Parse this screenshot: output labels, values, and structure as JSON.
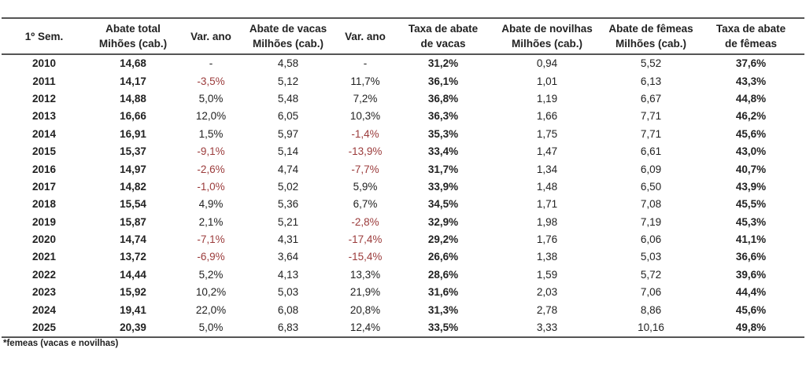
{
  "table": {
    "headers": [
      [
        "1º Sem."
      ],
      [
        "Abate total",
        "Mihões (cab.)"
      ],
      [
        "Var. ano"
      ],
      [
        "Abate de vacas",
        "Milhões (cab.)"
      ],
      [
        "Var. ano"
      ],
      [
        "Taxa de abate",
        "de vacas"
      ],
      [
        "Abate de novilhas",
        "Milhões (cab.)"
      ],
      [
        "Abate de fêmeas",
        "Milhões (cab.)"
      ],
      [
        "Taxa de abate",
        "de fêmeas"
      ]
    ],
    "rows": [
      [
        "2010",
        "14,68",
        "-",
        "4,58",
        "-",
        "31,2%",
        "0,94",
        "5,52",
        "37,6%"
      ],
      [
        "2011",
        "14,17",
        "-3,5%",
        "5,12",
        "11,7%",
        "36,1%",
        "1,01",
        "6,13",
        "43,3%"
      ],
      [
        "2012",
        "14,88",
        "5,0%",
        "5,48",
        "7,2%",
        "36,8%",
        "1,19",
        "6,67",
        "44,8%"
      ],
      [
        "2013",
        "16,66",
        "12,0%",
        "6,05",
        "10,3%",
        "36,3%",
        "1,66",
        "7,71",
        "46,2%"
      ],
      [
        "2014",
        "16,91",
        "1,5%",
        "5,97",
        "-1,4%",
        "35,3%",
        "1,75",
        "7,71",
        "45,6%"
      ],
      [
        "2015",
        "15,37",
        "-9,1%",
        "5,14",
        "-13,9%",
        "33,4%",
        "1,47",
        "6,61",
        "43,0%"
      ],
      [
        "2016",
        "14,97",
        "-2,6%",
        "4,74",
        "-7,7%",
        "31,7%",
        "1,34",
        "6,09",
        "40,7%"
      ],
      [
        "2017",
        "14,82",
        "-1,0%",
        "5,02",
        "5,9%",
        "33,9%",
        "1,48",
        "6,50",
        "43,9%"
      ],
      [
        "2018",
        "15,54",
        "4,9%",
        "5,36",
        "6,7%",
        "34,5%",
        "1,71",
        "7,08",
        "45,5%"
      ],
      [
        "2019",
        "15,87",
        "2,1%",
        "5,21",
        "-2,8%",
        "32,9%",
        "1,98",
        "7,19",
        "45,3%"
      ],
      [
        "2020",
        "14,74",
        "-7,1%",
        "4,31",
        "-17,4%",
        "29,2%",
        "1,76",
        "6,06",
        "41,1%"
      ],
      [
        "2021",
        "13,72",
        "-6,9%",
        "3,64",
        "-15,4%",
        "26,6%",
        "1,38",
        "5,03",
        "36,6%"
      ],
      [
        "2022",
        "14,44",
        "5,2%",
        "4,13",
        "13,3%",
        "28,6%",
        "1,59",
        "5,72",
        "39,6%"
      ],
      [
        "2023",
        "15,92",
        "10,2%",
        "5,03",
        "21,9%",
        "31,6%",
        "2,03",
        "7,06",
        "44,4%"
      ],
      [
        "2024",
        "19,41",
        "22,0%",
        "6,08",
        "20,8%",
        "31,3%",
        "2,78",
        "8,86",
        "45,6%"
      ],
      [
        "2025",
        "20,39",
        "5,0%",
        "6,83",
        "12,4%",
        "33,5%",
        "3,33",
        "10,16",
        "49,8%"
      ]
    ],
    "bold_columns": [
      0,
      1,
      5,
      8
    ],
    "negative_color": "#9b3b3b"
  },
  "footnote": "*femeas (vacas e novilhas)"
}
